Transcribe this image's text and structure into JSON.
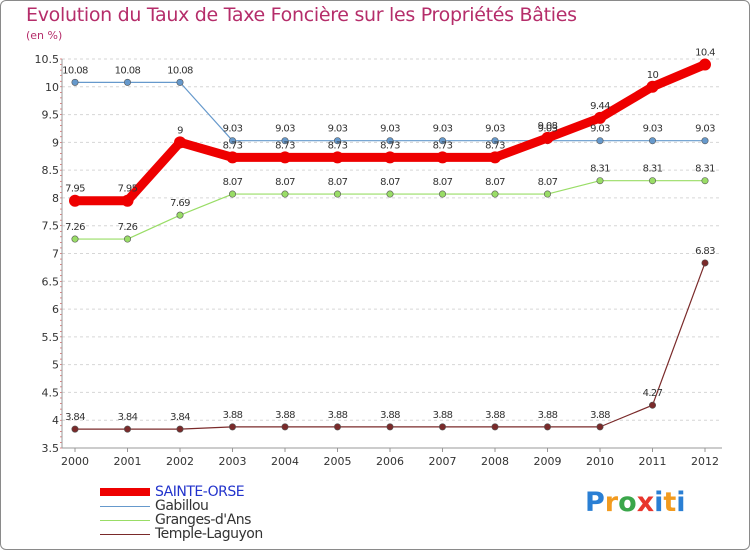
{
  "title": "Evolution du Taux de Taxe Foncière sur les Propriétés Bâties",
  "unit": "(en %)",
  "brand": [
    "P",
    "r",
    "o",
    "x",
    "i",
    "t",
    "i"
  ],
  "brand_colors": [
    "#2a7fd4",
    "#f29b1f",
    "#3aa64a",
    "#e8362d",
    "#2a7fd4",
    "#f29b1f",
    "#2a7fd4"
  ],
  "chart_data": {
    "type": "line",
    "title": "Evolution du Taux de Taxe Foncière sur les Propriétés Bâties",
    "ylabel": "(en %)",
    "xlabel": "",
    "x": [
      "2000",
      "2001",
      "2002",
      "2003",
      "2004",
      "2005",
      "2006",
      "2007",
      "2008",
      "2009",
      "2010",
      "2011",
      "2012"
    ],
    "ylim": [
      3.5,
      10.5
    ],
    "yticks": [
      3.5,
      4,
      4.5,
      5,
      5.5,
      6,
      6.5,
      7,
      7.5,
      8,
      8.5,
      9,
      9.5,
      10,
      10.5
    ],
    "ytick_labels": [
      "3.5",
      "4",
      "4.5",
      "5",
      "5.5",
      "6",
      "6.5",
      "7",
      "7.5",
      "8",
      "8.5",
      "9",
      "9.5",
      "10",
      "10.5"
    ],
    "grid": "horizontal dashed",
    "series": [
      {
        "name": "Gabillou",
        "color": "#6699cc",
        "values": [
          10.08,
          10.08,
          10.08,
          9.03,
          9.03,
          9.03,
          9.03,
          9.03,
          9.03,
          9.03,
          9.03,
          9.03,
          9.03
        ],
        "labels": [
          "10.08",
          "10.08",
          "10.08",
          "9.03",
          "9.03",
          "9.03",
          "9.03",
          "9.03",
          "9.03",
          "9.03",
          "9.03",
          "9.03",
          "9.03"
        ]
      },
      {
        "name": "Granges-d'Ans",
        "color": "#99dd66",
        "values": [
          7.26,
          7.26,
          7.69,
          8.07,
          8.07,
          8.07,
          8.07,
          8.07,
          8.07,
          8.07,
          8.31,
          8.31,
          8.31
        ],
        "labels": [
          "7.26",
          "7.26",
          "7.69",
          "8.07",
          "8.07",
          "8.07",
          "8.07",
          "8.07",
          "8.07",
          "8.07",
          "8.31",
          "8.31",
          "8.31"
        ]
      },
      {
        "name": "Temple-Laguyon",
        "color": "#7a2a2a",
        "values": [
          3.84,
          3.84,
          3.84,
          3.88,
          3.88,
          3.88,
          3.88,
          3.88,
          3.88,
          3.88,
          3.88,
          4.27,
          6.83
        ],
        "labels": [
          "3.84",
          "3.84",
          "3.84",
          "3.88",
          "3.88",
          "3.88",
          "3.88",
          "3.88",
          "3.88",
          "3.88",
          "3.88",
          "4.27",
          "6.83"
        ]
      },
      {
        "name": "SAINTE-ORSE",
        "color": "#ee0000",
        "values": [
          7.95,
          7.95,
          9,
          8.73,
          8.73,
          8.73,
          8.73,
          8.73,
          8.73,
          9.08,
          9.44,
          10,
          10.4
        ],
        "labels": [
          "7.95",
          "7.95",
          "9",
          "8.73",
          "8.73",
          "8.73",
          "8.73",
          "8.73",
          "8.73",
          "9.08",
          "9.44",
          "10",
          "10.4"
        ]
      }
    ],
    "legend": [
      "SAINTE-ORSE",
      "Gabillou",
      "Granges-d'Ans",
      "Temple-Laguyon"
    ],
    "legend_position": "bottom-left"
  }
}
